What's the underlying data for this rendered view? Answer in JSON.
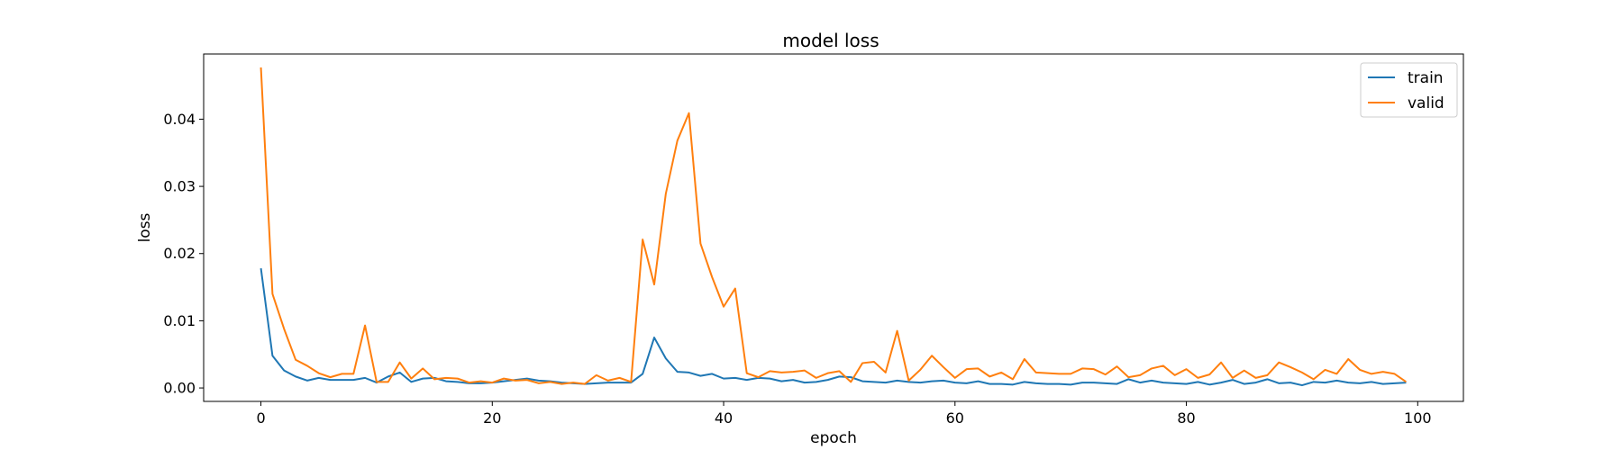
{
  "chart_data": {
    "type": "line",
    "title": "model loss",
    "xlabel": "epoch",
    "ylabel": "loss",
    "xlim": [
      -4.95,
      103.95
    ],
    "ylim": [
      -0.002,
      0.0497
    ],
    "xticks": [
      0,
      20,
      40,
      60,
      80,
      100
    ],
    "yticks": [
      0.0,
      0.01,
      0.02,
      0.03,
      0.04
    ],
    "xtick_labels": [
      "0",
      "20",
      "40",
      "60",
      "80",
      "100"
    ],
    "ytick_labels": [
      "0.00",
      "0.01",
      "0.02",
      "0.03",
      "0.04"
    ],
    "grid": false,
    "legend_position": "top-right",
    "series": [
      {
        "name": "train",
        "color": "#1f77b4",
        "values": [
          0.0178,
          0.0048,
          0.0026,
          0.0017,
          0.0011,
          0.0015,
          0.0012,
          0.0012,
          0.0012,
          0.0015,
          0.0008,
          0.0017,
          0.0023,
          0.0009,
          0.0014,
          0.0015,
          0.001,
          0.0009,
          0.0007,
          0.0007,
          0.0008,
          0.001,
          0.0012,
          0.0014,
          0.0011,
          0.001,
          0.0008,
          0.0007,
          0.0006,
          0.0007,
          0.0008,
          0.0008,
          0.0008,
          0.0021,
          0.0075,
          0.0044,
          0.0024,
          0.0023,
          0.0018,
          0.0021,
          0.0014,
          0.0015,
          0.0012,
          0.0015,
          0.0014,
          0.001,
          0.0012,
          0.0008,
          0.0009,
          0.0012,
          0.0017,
          0.0016,
          0.001,
          0.0009,
          0.0008,
          0.0011,
          0.0009,
          0.0008,
          0.001,
          0.0011,
          0.0008,
          0.0007,
          0.001,
          0.0006,
          0.0006,
          0.0005,
          0.0009,
          0.0007,
          0.0006,
          0.0006,
          0.0005,
          0.0008,
          0.0008,
          0.0007,
          0.0006,
          0.0013,
          0.0008,
          0.0011,
          0.0008,
          0.0007,
          0.0006,
          0.0009,
          0.0005,
          0.0008,
          0.0012,
          0.0006,
          0.0008,
          0.0013,
          0.0007,
          0.0008,
          0.0004,
          0.0009,
          0.0008,
          0.0011,
          0.0008,
          0.0007,
          0.0009,
          0.0006,
          0.0007,
          0.0008
        ]
      },
      {
        "name": "valid",
        "color": "#ff7f0e",
        "values": [
          0.0477,
          0.014,
          0.0088,
          0.0042,
          0.0033,
          0.0022,
          0.0016,
          0.0021,
          0.0021,
          0.0093,
          0.0009,
          0.0009,
          0.0038,
          0.0014,
          0.0029,
          0.0013,
          0.0015,
          0.0014,
          0.0008,
          0.001,
          0.0008,
          0.0014,
          0.0011,
          0.0012,
          0.0007,
          0.0009,
          0.0006,
          0.0008,
          0.0006,
          0.0019,
          0.0011,
          0.0015,
          0.0009,
          0.0221,
          0.0154,
          0.0289,
          0.0368,
          0.0409,
          0.0215,
          0.0165,
          0.0121,
          0.0148,
          0.0022,
          0.0016,
          0.0025,
          0.0023,
          0.0024,
          0.0026,
          0.0015,
          0.0022,
          0.0025,
          0.0009,
          0.0037,
          0.0039,
          0.0023,
          0.0085,
          0.0011,
          0.0027,
          0.0048,
          0.0031,
          0.0015,
          0.0028,
          0.0029,
          0.0017,
          0.0023,
          0.0013,
          0.0043,
          0.0023,
          0.0022,
          0.0021,
          0.0021,
          0.0029,
          0.0028,
          0.002,
          0.0032,
          0.0016,
          0.0019,
          0.0029,
          0.0033,
          0.0019,
          0.0028,
          0.0015,
          0.002,
          0.0038,
          0.0015,
          0.0026,
          0.0015,
          0.0019,
          0.0038,
          0.0031,
          0.0023,
          0.0013,
          0.0027,
          0.0021,
          0.0043,
          0.0027,
          0.0021,
          0.0024,
          0.0021,
          0.0009
        ]
      }
    ]
  }
}
